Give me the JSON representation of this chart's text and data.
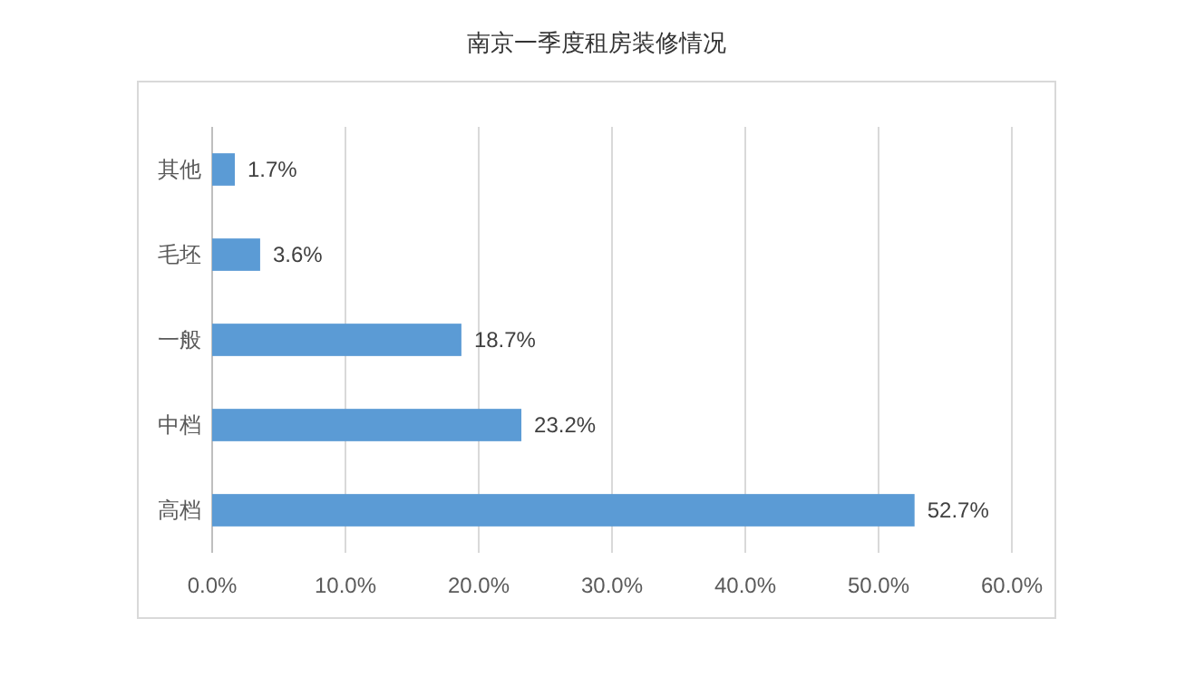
{
  "chart_data": {
    "type": "bar",
    "orientation": "horizontal",
    "title": "南京一季度租房装修情况",
    "categories": [
      "其他",
      "毛坯",
      "一般",
      "中档",
      "高档"
    ],
    "values": [
      1.7,
      3.6,
      18.7,
      23.2,
      52.7
    ],
    "value_labels": [
      "1.7%",
      "3.6%",
      "18.7%",
      "23.2%",
      "52.7%"
    ],
    "color": "#5b9bd5",
    "xlim": [
      0,
      60
    ],
    "xticks": [
      {
        "value": 0,
        "label": "0.0%"
      },
      {
        "value": 10,
        "label": "10.0%"
      },
      {
        "value": 20,
        "label": "20.0%"
      },
      {
        "value": 30,
        "label": "30.0%"
      },
      {
        "value": 40,
        "label": "40.0%"
      },
      {
        "value": 50,
        "label": "50.0%"
      },
      {
        "value": 60,
        "label": "60.0%"
      }
    ],
    "grid": "x"
  }
}
